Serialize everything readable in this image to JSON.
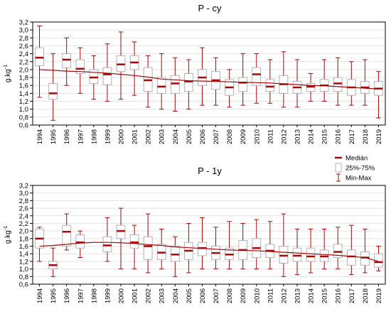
{
  "chart_data": [
    {
      "type": "boxplot",
      "title": "P - cy",
      "ylabel": "g.kg",
      "ylabel_sup": "-1",
      "ylim": [
        0.6,
        3.2
      ],
      "yticks": [
        "0,6",
        "0,8",
        "1,0",
        "1,2",
        "1,4",
        "1,6",
        "1,8",
        "2,0",
        "2,2",
        "2,4",
        "2,6",
        "2,8",
        "3,0",
        "3,2"
      ],
      "categories": [
        "1994",
        "1995",
        "1996",
        "1997",
        "1998",
        "1999",
        "2000",
        "2001",
        "2002",
        "2003",
        "2004",
        "2005",
        "2006",
        "2007",
        "2008",
        "2009",
        "2010",
        "2011",
        "2012",
        "2013",
        "2014",
        "2015",
        "2016",
        "2017",
        "2018",
        "2019"
      ],
      "series": [
        {
          "name": "Medián",
          "values": [
            2.3,
            1.4,
            2.25,
            2.02,
            1.8,
            1.88,
            2.13,
            2.18,
            1.73,
            1.57,
            1.65,
            1.7,
            1.8,
            1.73,
            1.55,
            1.67,
            1.88,
            1.57,
            1.63,
            1.55,
            1.57,
            1.6,
            1.65,
            1.55,
            1.55,
            1.52
          ]
        },
        {
          "name": "25%-75%",
          "q1": [
            2.1,
            1.25,
            2.05,
            1.9,
            1.65,
            1.62,
            1.95,
            2.0,
            1.45,
            1.4,
            1.4,
            1.45,
            1.6,
            1.5,
            1.35,
            1.45,
            1.6,
            1.45,
            1.4,
            1.4,
            1.45,
            1.45,
            1.45,
            1.35,
            1.4,
            1.35
          ],
          "q3": [
            2.55,
            1.65,
            2.4,
            2.25,
            2.0,
            2.05,
            2.35,
            2.35,
            2.05,
            1.8,
            1.85,
            1.9,
            2.0,
            1.95,
            1.75,
            1.8,
            2.05,
            1.75,
            1.85,
            1.7,
            1.65,
            1.75,
            1.8,
            1.75,
            1.7,
            1.7
          ]
        },
        {
          "name": "Min-Max",
          "min": [
            1.3,
            0.72,
            1.6,
            1.4,
            1.25,
            1.2,
            1.25,
            1.35,
            1.05,
            1.0,
            0.95,
            1.0,
            1.1,
            1.1,
            1.05,
            1.1,
            1.15,
            1.15,
            1.05,
            1.05,
            1.2,
            1.2,
            1.1,
            1.1,
            1.1,
            0.78
          ],
          "max": [
            3.1,
            2.4,
            2.8,
            2.55,
            2.35,
            2.65,
            2.95,
            2.7,
            2.35,
            2.4,
            2.3,
            2.25,
            2.55,
            2.3,
            2.0,
            2.4,
            2.4,
            2.25,
            2.45,
            2.25,
            1.9,
            2.25,
            2.3,
            2.2,
            2.25,
            1.95
          ]
        }
      ],
      "trend": [
        2.0,
        1.98,
        1.96,
        1.95,
        1.93,
        1.91,
        1.88,
        1.85,
        1.81,
        1.76,
        1.74,
        1.72,
        1.71,
        1.7,
        1.69,
        1.68,
        1.67,
        1.66,
        1.64,
        1.62,
        1.6,
        1.59,
        1.57,
        1.55,
        1.53,
        1.51
      ],
      "grid": true
    },
    {
      "type": "boxplot",
      "title": "P - 1y",
      "ylabel": "g.kg",
      "ylabel_sup": "-1",
      "ylim": [
        0.6,
        3.2
      ],
      "yticks": [
        "0,6",
        "0,8",
        "1,0",
        "1,2",
        "1,4",
        "1,6",
        "1,8",
        "2,0",
        "2,2",
        "2,4",
        "2,6",
        "2,8",
        "3,0",
        "3,2"
      ],
      "categories": [
        "1994",
        "1995",
        "1996",
        "1997",
        "1998",
        "1999",
        "2000",
        "2001",
        "2002",
        "2003",
        "2004",
        "2005",
        "2006",
        "2007",
        "2008",
        "2009",
        "2010",
        "2011",
        "2012",
        "2013",
        "2014",
        "2015",
        "2016",
        "2017",
        "2018",
        "2019"
      ],
      "series": [
        {
          "name": "Medián",
          "values": [
            1.8,
            1.1,
            1.98,
            1.7,
            null,
            1.62,
            2.0,
            1.7,
            1.6,
            1.43,
            1.38,
            1.48,
            1.55,
            1.42,
            1.38,
            1.5,
            1.55,
            1.48,
            1.35,
            1.35,
            1.33,
            1.33,
            1.45,
            1.33,
            1.3,
            1.18
          ]
        },
        {
          "name": "25%-75%",
          "q1": [
            1.55,
            1.0,
            1.6,
            1.55,
            null,
            1.45,
            1.8,
            1.55,
            1.25,
            1.25,
            1.2,
            1.25,
            1.35,
            1.25,
            1.25,
            1.25,
            1.3,
            1.3,
            1.15,
            1.2,
            1.2,
            1.2,
            1.3,
            1.1,
            1.1,
            1.05
          ],
          "q3": [
            2.05,
            1.2,
            2.15,
            1.9,
            null,
            1.85,
            2.15,
            1.9,
            1.85,
            1.65,
            1.6,
            1.7,
            1.7,
            1.6,
            1.55,
            1.75,
            1.8,
            1.65,
            1.6,
            1.55,
            1.55,
            1.5,
            1.65,
            1.5,
            1.45,
            1.4
          ]
        },
        {
          "name": "Min-Max",
          "min": [
            1.2,
            0.8,
            1.5,
            1.3,
            null,
            1.2,
            1.0,
            1.0,
            0.9,
            1.0,
            0.8,
            0.9,
            1.0,
            1.0,
            1.0,
            1.0,
            1.0,
            1.0,
            0.8,
            0.85,
            0.9,
            1.0,
            1.0,
            0.85,
            0.9,
            0.95
          ],
          "max": [
            2.1,
            1.55,
            2.45,
            2.0,
            null,
            2.35,
            2.6,
            2.15,
            2.45,
            2.05,
            1.85,
            2.2,
            2.35,
            2.1,
            2.25,
            2.2,
            2.3,
            2.25,
            2.45,
            2.05,
            2.05,
            2.05,
            2.1,
            2.15,
            2.05,
            1.6
          ]
        }
      ],
      "trend": [
        1.6,
        1.62,
        1.65,
        1.68,
        1.7,
        1.7,
        1.69,
        1.67,
        1.64,
        1.62,
        1.58,
        1.56,
        1.54,
        1.52,
        1.5,
        1.49,
        1.48,
        1.46,
        1.44,
        1.42,
        1.4,
        1.38,
        1.36,
        1.33,
        1.3,
        1.2
      ],
      "grid": true
    }
  ],
  "legend": [
    {
      "label": "Medián",
      "marker": "median"
    },
    {
      "label": "25%-75%",
      "marker": "box"
    },
    {
      "label": "Min-Max",
      "marker": "whisker"
    }
  ],
  "colors": {
    "series": "#a3090b",
    "box_stroke": "#b3b3b3",
    "grid": "#e3e3e3",
    "axis": "#000000"
  }
}
